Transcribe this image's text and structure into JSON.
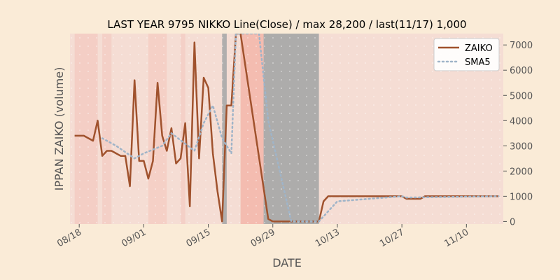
{
  "chart_data": {
    "type": "line",
    "title": "LAST YEAR 9795 NIKKO Line(Close) / max 28,200 / last(11/17) 1,000",
    "xlabel": "DATE",
    "ylabel": "IPPAN ZAIKO (volume)",
    "x_range": [
      "2024-08-16",
      "2024-11-18"
    ],
    "ylim": [
      -100,
      7450
    ],
    "y_axis_side": "right",
    "y_ticks": [
      0,
      1000,
      2000,
      3000,
      4000,
      5000,
      6000,
      7000
    ],
    "x_ticks": [
      {
        "date": "2024-08-18",
        "label": "08/18"
      },
      {
        "date": "2024-09-01",
        "label": "09/01"
      },
      {
        "date": "2024-09-15",
        "label": "09/15"
      },
      {
        "date": "2024-09-29",
        "label": "09/29"
      },
      {
        "date": "2024-10-13",
        "label": "10/13"
      },
      {
        "date": "2024-10-27",
        "label": "10/27"
      },
      {
        "date": "2024-11-10",
        "label": "11/10"
      }
    ],
    "legend": {
      "position": "top-right"
    },
    "grid": false,
    "colors": {
      "background": "#FAEBD7",
      "plot_background": "#F5DDD4",
      "zaiko": "#A0522D",
      "sma5": "#9FB4C8",
      "axis_text": "#555555",
      "shade_gray": "#A9A9A9",
      "shade_red": "#F4B8AC",
      "shade_white": "#F2EBEB"
    },
    "shading": [
      {
        "start": "2024-09-18",
        "end": "2024-09-19",
        "color": "#A9A9A9",
        "opacity": 0.9
      },
      {
        "start": "2024-09-22",
        "end": "2024-09-27",
        "color": "#F4B8AC",
        "opacity": 0.9
      },
      {
        "start": "2024-09-27",
        "end": "2024-10-09",
        "color": "#A9A9A9",
        "opacity": 0.95
      },
      {
        "start": "2024-08-17",
        "end": "2024-08-22",
        "color": "#F4C4BA",
        "opacity": 0.6
      },
      {
        "start": "2024-08-23",
        "end": "2024-08-25",
        "color": "#F4C4BA",
        "opacity": 0.5
      },
      {
        "start": "2024-09-02",
        "end": "2024-09-06",
        "color": "#F4C4BA",
        "opacity": 0.55
      },
      {
        "start": "2024-09-09",
        "end": "2024-09-10",
        "color": "#F4C4BA",
        "opacity": 0.5
      }
    ],
    "series": [
      {
        "name": "ZAIKO",
        "style": "solid",
        "x": [
          "2024-08-17",
          "2024-08-19",
          "2024-08-21",
          "2024-08-22",
          "2024-08-23",
          "2024-08-24",
          "2024-08-25",
          "2024-08-26",
          "2024-08-27",
          "2024-08-28",
          "2024-08-29",
          "2024-08-30",
          "2024-08-31",
          "2024-09-01",
          "2024-09-02",
          "2024-09-03",
          "2024-09-04",
          "2024-09-05",
          "2024-09-06",
          "2024-09-07",
          "2024-09-08",
          "2024-09-09",
          "2024-09-10",
          "2024-09-11",
          "2024-09-12",
          "2024-09-13",
          "2024-09-14",
          "2024-09-15",
          "2024-09-16",
          "2024-09-17",
          "2024-09-18",
          "2024-09-19",
          "2024-09-20",
          "2024-09-21",
          "2024-09-22",
          "2024-09-28",
          "2024-09-29",
          "2024-10-02",
          "2024-10-09",
          "2024-10-10",
          "2024-10-11",
          "2024-10-27",
          "2024-10-28",
          "2024-10-31",
          "2024-11-01",
          "2024-11-17"
        ],
        "y": [
          3400,
          3400,
          3200,
          4000,
          2600,
          2800,
          2800,
          2700,
          2600,
          2600,
          1400,
          5600,
          2400,
          2400,
          1700,
          2400,
          5500,
          3400,
          2800,
          3700,
          2300,
          2500,
          3900,
          600,
          7100,
          2500,
          5700,
          5300,
          2700,
          1200,
          0,
          4600,
          4600,
          7450,
          7450,
          100,
          0,
          0,
          0,
          800,
          1000,
          1000,
          900,
          900,
          1000,
          1000
        ]
      },
      {
        "name": "SMA5",
        "style": "dotted",
        "x": [
          "2024-08-23",
          "2024-08-26",
          "2024-08-30",
          "2024-09-01",
          "2024-09-05",
          "2024-09-07",
          "2024-09-12",
          "2024-09-14",
          "2024-09-16",
          "2024-09-18",
          "2024-09-20",
          "2024-09-21",
          "2024-09-26",
          "2024-09-28",
          "2024-10-03",
          "2024-10-09",
          "2024-10-13",
          "2024-10-27",
          "2024-10-28",
          "2024-11-17"
        ],
        "y": [
          3300,
          3000,
          2500,
          2700,
          3000,
          3500,
          2800,
          3900,
          4600,
          3300,
          2700,
          7450,
          7450,
          4000,
          0,
          0,
          800,
          1000,
          950,
          1000
        ]
      }
    ]
  }
}
